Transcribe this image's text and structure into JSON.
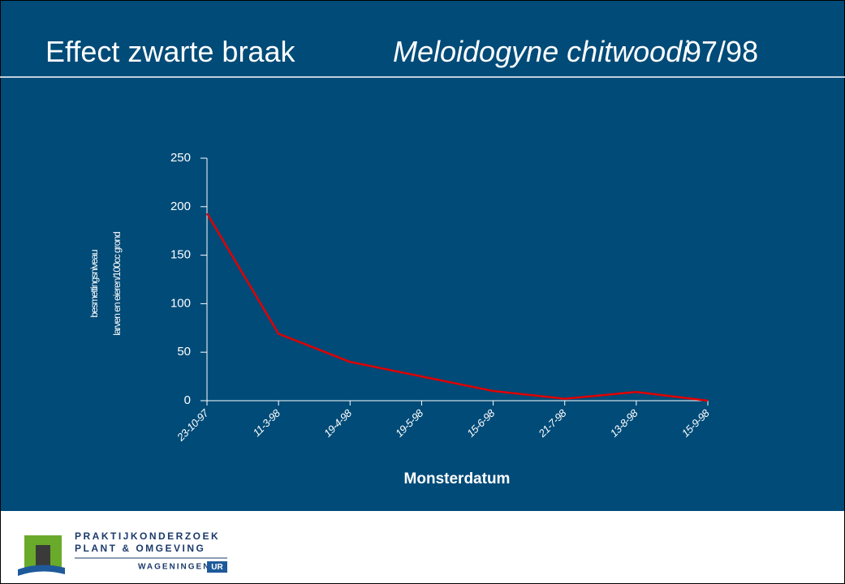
{
  "chart_data": {
    "type": "line",
    "title": "Effect zwarte braak",
    "subtitle": "Meloidogyne chitwoodi",
    "title_suffix": "97/98",
    "y_label": [
      "besmettingsniveau",
      "larven en eieren/100cc grond"
    ],
    "x_label": "Monsterdatum",
    "categories": [
      "23-10-97",
      "11-3-98",
      "19-4-98",
      "19-5-98",
      "15-6-98",
      "21-7-98",
      "13-8-98",
      "15-9-98"
    ],
    "series": [
      {
        "name": "besmettingsniveau",
        "color": "#e00000",
        "values": [
          193,
          69,
          40,
          25,
          10,
          2,
          9,
          0
        ]
      }
    ],
    "ylim": [
      0,
      250
    ],
    "yticks": [
      0,
      50,
      100,
      150,
      200,
      250
    ],
    "grid": false
  },
  "footer": {
    "logo_lines": [
      "PRAKTIJKONDERZOEK",
      "PLANT & OMGEVING"
    ],
    "logo_brand": "WAGENINGEN",
    "logo_ur": "UR"
  }
}
